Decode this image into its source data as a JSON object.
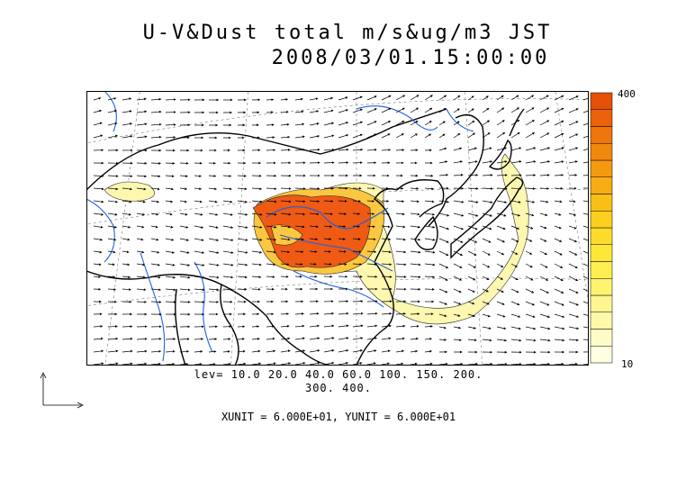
{
  "title": {
    "line1": "U-V&Dust total m/s&ug/m3 JST",
    "line2": "2008/03/01.15:00:00"
  },
  "colorbar": {
    "max_label": "400",
    "min_label": "10",
    "colors": [
      "#fefee0",
      "#fefbc8",
      "#fef8a8",
      "#fef690",
      "#fef270",
      "#feee50",
      "#fde838",
      "#fcdc28",
      "#fbce20",
      "#f9be18",
      "#f7ac14",
      "#f49a10",
      "#f1880e",
      "#ee760c",
      "#ea620a",
      "#e65008"
    ]
  },
  "levels": {
    "line1": "lev= 10.0 20.0 40.0 60.0 100. 150. 200.",
    "line2": "300. 400."
  },
  "units": "XUNIT = 6.000E+01, YUNIT = 6.000E+01",
  "map_colors": {
    "coast": "#000000",
    "rivers": "#1f5fe0",
    "gridlines": "#777777",
    "dust_low": "#fdf7b0",
    "dust_mid": "#fbc740",
    "dust_high": "#ef5a14"
  }
}
